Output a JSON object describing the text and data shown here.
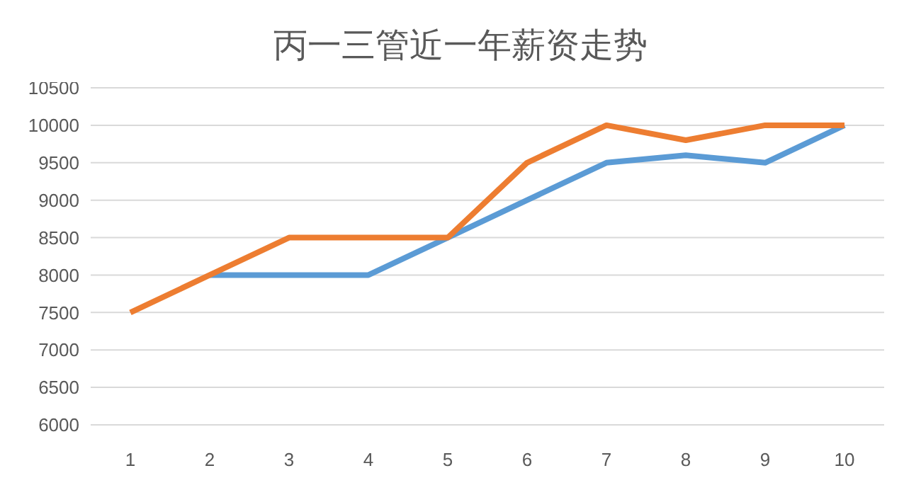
{
  "chart_data": {
    "type": "line",
    "title": "丙一三管近一年薪资走势",
    "categories": [
      "1",
      "2",
      "3",
      "4",
      "5",
      "6",
      "7",
      "8",
      "9",
      "10"
    ],
    "series": [
      {
        "color": "#5b9bd5",
        "values": [
          null,
          8000,
          8000,
          8000,
          8500,
          9000,
          9500,
          9600,
          9500,
          10000
        ]
      },
      {
        "color": "#ed7d31",
        "values": [
          7500,
          8000,
          8500,
          8500,
          8500,
          9500,
          10000,
          9800,
          10000,
          10000
        ]
      }
    ],
    "ylim": [
      6000,
      10500
    ],
    "yticks": [
      6000,
      6500,
      7000,
      7500,
      8000,
      8500,
      9000,
      9500,
      10000,
      10500
    ],
    "grid": "y",
    "legend": false,
    "marker": "none",
    "line_style": "solid"
  }
}
